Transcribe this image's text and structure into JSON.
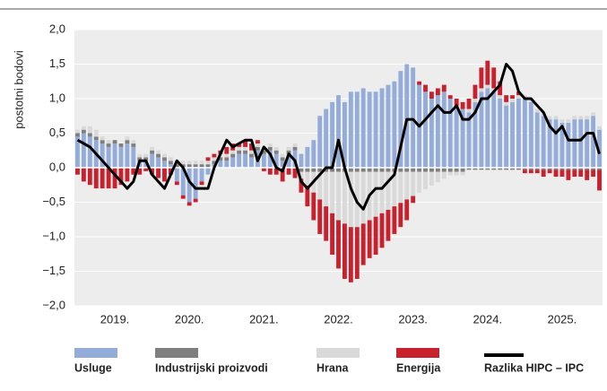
{
  "chart_data": {
    "type": "bar",
    "y_label": "postotni bodovi",
    "categories": [
      null,
      null,
      null,
      null,
      null,
      null,
      "2019.",
      null,
      null,
      null,
      null,
      null,
      null,
      null,
      null,
      null,
      null,
      null,
      "2020.",
      null,
      null,
      null,
      null,
      null,
      null,
      null,
      null,
      null,
      null,
      null,
      "2021.",
      null,
      null,
      null,
      null,
      null,
      null,
      null,
      null,
      null,
      null,
      null,
      "2022.",
      null,
      null,
      null,
      null,
      null,
      null,
      null,
      null,
      null,
      null,
      null,
      "2023.",
      null,
      null,
      null,
      null,
      null,
      null,
      null,
      null,
      null,
      null,
      null,
      "2024.",
      null,
      null,
      null,
      null,
      null,
      null,
      null,
      null,
      null,
      null,
      null,
      "2025.",
      null,
      null,
      null,
      null,
      null,
      null
    ],
    "ylim": [
      -2,
      2
    ],
    "yticks": [
      {
        "value": -2,
        "label": "−2,0"
      },
      {
        "value": -1.5,
        "label": "−1,5"
      },
      {
        "value": -1,
        "label": "−1,0"
      },
      {
        "value": -0.5,
        "label": "−0,5"
      },
      {
        "value": 0,
        "label": "0,0"
      },
      {
        "value": 0.5,
        "label": "0,5"
      },
      {
        "value": 1,
        "label": "1,0"
      },
      {
        "value": 1.5,
        "label": "1,5"
      },
      {
        "value": 2,
        "label": "2,0"
      }
    ],
    "grid": true,
    "stacked": true,
    "legend": "bottom",
    "series": [
      {
        "name": "Usluge",
        "color": "#93acd9",
        "values": [
          0.45,
          0.5,
          0.45,
          0.4,
          0.35,
          0.3,
          0.35,
          0.3,
          0.35,
          0.3,
          0.1,
          0.1,
          0.2,
          0.15,
          0.1,
          0.05,
          -0.2,
          -0.4,
          -0.5,
          -0.45,
          -0.2,
          -0.1,
          0.05,
          0.1,
          0.1,
          0.15,
          0.2,
          0.2,
          0.15,
          0.25,
          0.2,
          0.25,
          0.2,
          0.1,
          0.2,
          0.25,
          0.2,
          0.3,
          0.4,
          0.75,
          0.85,
          0.95,
          1.05,
          0.95,
          1.1,
          1.1,
          1.15,
          1.1,
          1.1,
          1.15,
          1.2,
          1.25,
          1.4,
          1.5,
          1.45,
          1.2,
          1.1,
          1.0,
          1.05,
          1.1,
          1.0,
          0.9,
          0.85,
          0.8,
          0.95,
          1.1,
          1.15,
          1.1,
          1.0,
          0.9,
          0.95,
          1.0,
          1.0,
          0.95,
          0.8,
          0.75,
          0.7,
          0.7,
          0.65,
          0.65,
          0.7,
          0.7,
          0.7,
          0.75,
          0.55
        ]
      },
      {
        "name": "Industrijski proizvodi",
        "color": "#7f7f7f",
        "values": [
          0.05,
          0.05,
          0.05,
          0.05,
          0.05,
          0.05,
          0.05,
          0.05,
          0.05,
          0.05,
          0.05,
          0.05,
          0.05,
          0.05,
          0.05,
          0.05,
          0.05,
          0.05,
          0.05,
          0.05,
          0.05,
          0.05,
          0.05,
          0.05,
          0.05,
          0.05,
          0.05,
          0.05,
          0.05,
          0.05,
          0.05,
          0.05,
          0.05,
          0.05,
          0.05,
          0.05,
          -0.06,
          -0.06,
          -0.06,
          -0.06,
          -0.06,
          -0.06,
          -0.06,
          -0.06,
          -0.06,
          -0.06,
          -0.06,
          -0.06,
          -0.06,
          -0.06,
          -0.06,
          -0.06,
          -0.06,
          -0.06,
          -0.06,
          -0.06,
          -0.06,
          -0.06,
          -0.06,
          -0.06,
          -0.06,
          -0.06,
          -0.06,
          -0.03,
          -0.03,
          -0.03,
          -0.03,
          -0.03,
          -0.03,
          -0.03,
          -0.03,
          -0.03,
          -0.03,
          -0.03,
          -0.03,
          -0.03,
          -0.03,
          -0.03,
          -0.03,
          -0.03,
          -0.03,
          -0.03,
          -0.03,
          -0.03,
          -0.03
        ]
      },
      {
        "name": "Hrana",
        "color": "#d9d9d9",
        "values": [
          0.05,
          0.05,
          0.1,
          0.1,
          0.05,
          0.05,
          0,
          0,
          0.05,
          0.05,
          0.05,
          0.05,
          0.05,
          0.05,
          0.05,
          0.05,
          0.05,
          0.05,
          0.05,
          0.05,
          0.05,
          0.05,
          0.05,
          0.05,
          0.05,
          0.05,
          0.05,
          0.05,
          0.05,
          0.05,
          0.05,
          0.05,
          0.05,
          0.05,
          0.05,
          0.05,
          -0.1,
          -0.2,
          -0.3,
          -0.4,
          -0.5,
          -0.6,
          -0.7,
          -0.75,
          -0.8,
          -0.8,
          -0.75,
          -0.7,
          -0.65,
          -0.6,
          -0.55,
          -0.5,
          -0.45,
          -0.4,
          -0.35,
          -0.3,
          -0.25,
          -0.2,
          -0.15,
          -0.1,
          -0.05,
          -0.05,
          -0.05,
          0.05,
          0.05,
          0.05,
          0.05,
          0.05,
          0.05,
          0.05,
          0.05,
          0.05,
          0.05,
          0.05,
          0.05,
          0.05,
          0.05,
          0.05,
          0.05,
          0.05,
          0.05,
          0.05,
          0.05,
          0.05,
          0.05
        ]
      },
      {
        "name": "Energija",
        "color": "#c8202d",
        "values": [
          -0.1,
          -0.2,
          -0.25,
          -0.3,
          -0.3,
          -0.3,
          -0.3,
          -0.25,
          -0.2,
          -0.1,
          -0.1,
          -0.05,
          -0.1,
          -0.15,
          -0.2,
          -0.1,
          -0.05,
          -0.05,
          -0.05,
          -0.05,
          -0.05,
          0.05,
          0.05,
          0.05,
          0.1,
          0.1,
          0.05,
          0.1,
          0.1,
          0.05,
          -0.05,
          -0.1,
          -0.1,
          -0.2,
          -0.1,
          -0.15,
          -0.2,
          -0.3,
          -0.4,
          -0.5,
          -0.5,
          -0.6,
          -0.7,
          -0.8,
          -0.8,
          -0.75,
          -0.6,
          -0.55,
          -0.55,
          -0.5,
          -0.45,
          -0.4,
          -0.35,
          -0.3,
          -0.1,
          0.05,
          0.1,
          0.1,
          0.1,
          0.1,
          0.05,
          0.1,
          0.1,
          0.15,
          0.2,
          0.3,
          0.35,
          0.3,
          0.2,
          0.1,
          0.05,
          0.05,
          -0.05,
          -0.05,
          -0.05,
          -0.1,
          -0.05,
          -0.1,
          -0.1,
          -0.15,
          -0.1,
          -0.1,
          -0.15,
          -0.1,
          -0.3
        ]
      },
      {
        "name": "Razlika HIPC – IPC",
        "color": "#000000",
        "type": "line",
        "values": [
          0.4,
          0.35,
          0.3,
          0.2,
          0.1,
          0.0,
          -0.1,
          -0.2,
          -0.3,
          -0.2,
          0.1,
          0.1,
          -0.1,
          -0.2,
          -0.3,
          -0.1,
          0.1,
          0.0,
          -0.2,
          -0.3,
          -0.3,
          -0.3,
          0.0,
          0.2,
          0.4,
          0.3,
          0.35,
          0.4,
          0.4,
          0.1,
          0.3,
          0.2,
          0.0,
          -0.05,
          0.2,
          0.1,
          -0.2,
          -0.3,
          -0.2,
          -0.1,
          0.0,
          0.0,
          0.4,
          0.0,
          -0.3,
          -0.5,
          -0.6,
          -0.4,
          -0.3,
          -0.3,
          -0.2,
          -0.1,
          0.3,
          0.7,
          0.7,
          0.6,
          0.7,
          0.8,
          0.9,
          0.8,
          0.8,
          0.9,
          0.7,
          0.7,
          0.8,
          1.0,
          1.0,
          1.1,
          1.2,
          1.5,
          1.4,
          1.1,
          1.0,
          1.0,
          0.9,
          0.8,
          0.6,
          0.5,
          0.6,
          0.4,
          0.4,
          0.4,
          0.5,
          0.5,
          0.2
        ]
      }
    ]
  }
}
